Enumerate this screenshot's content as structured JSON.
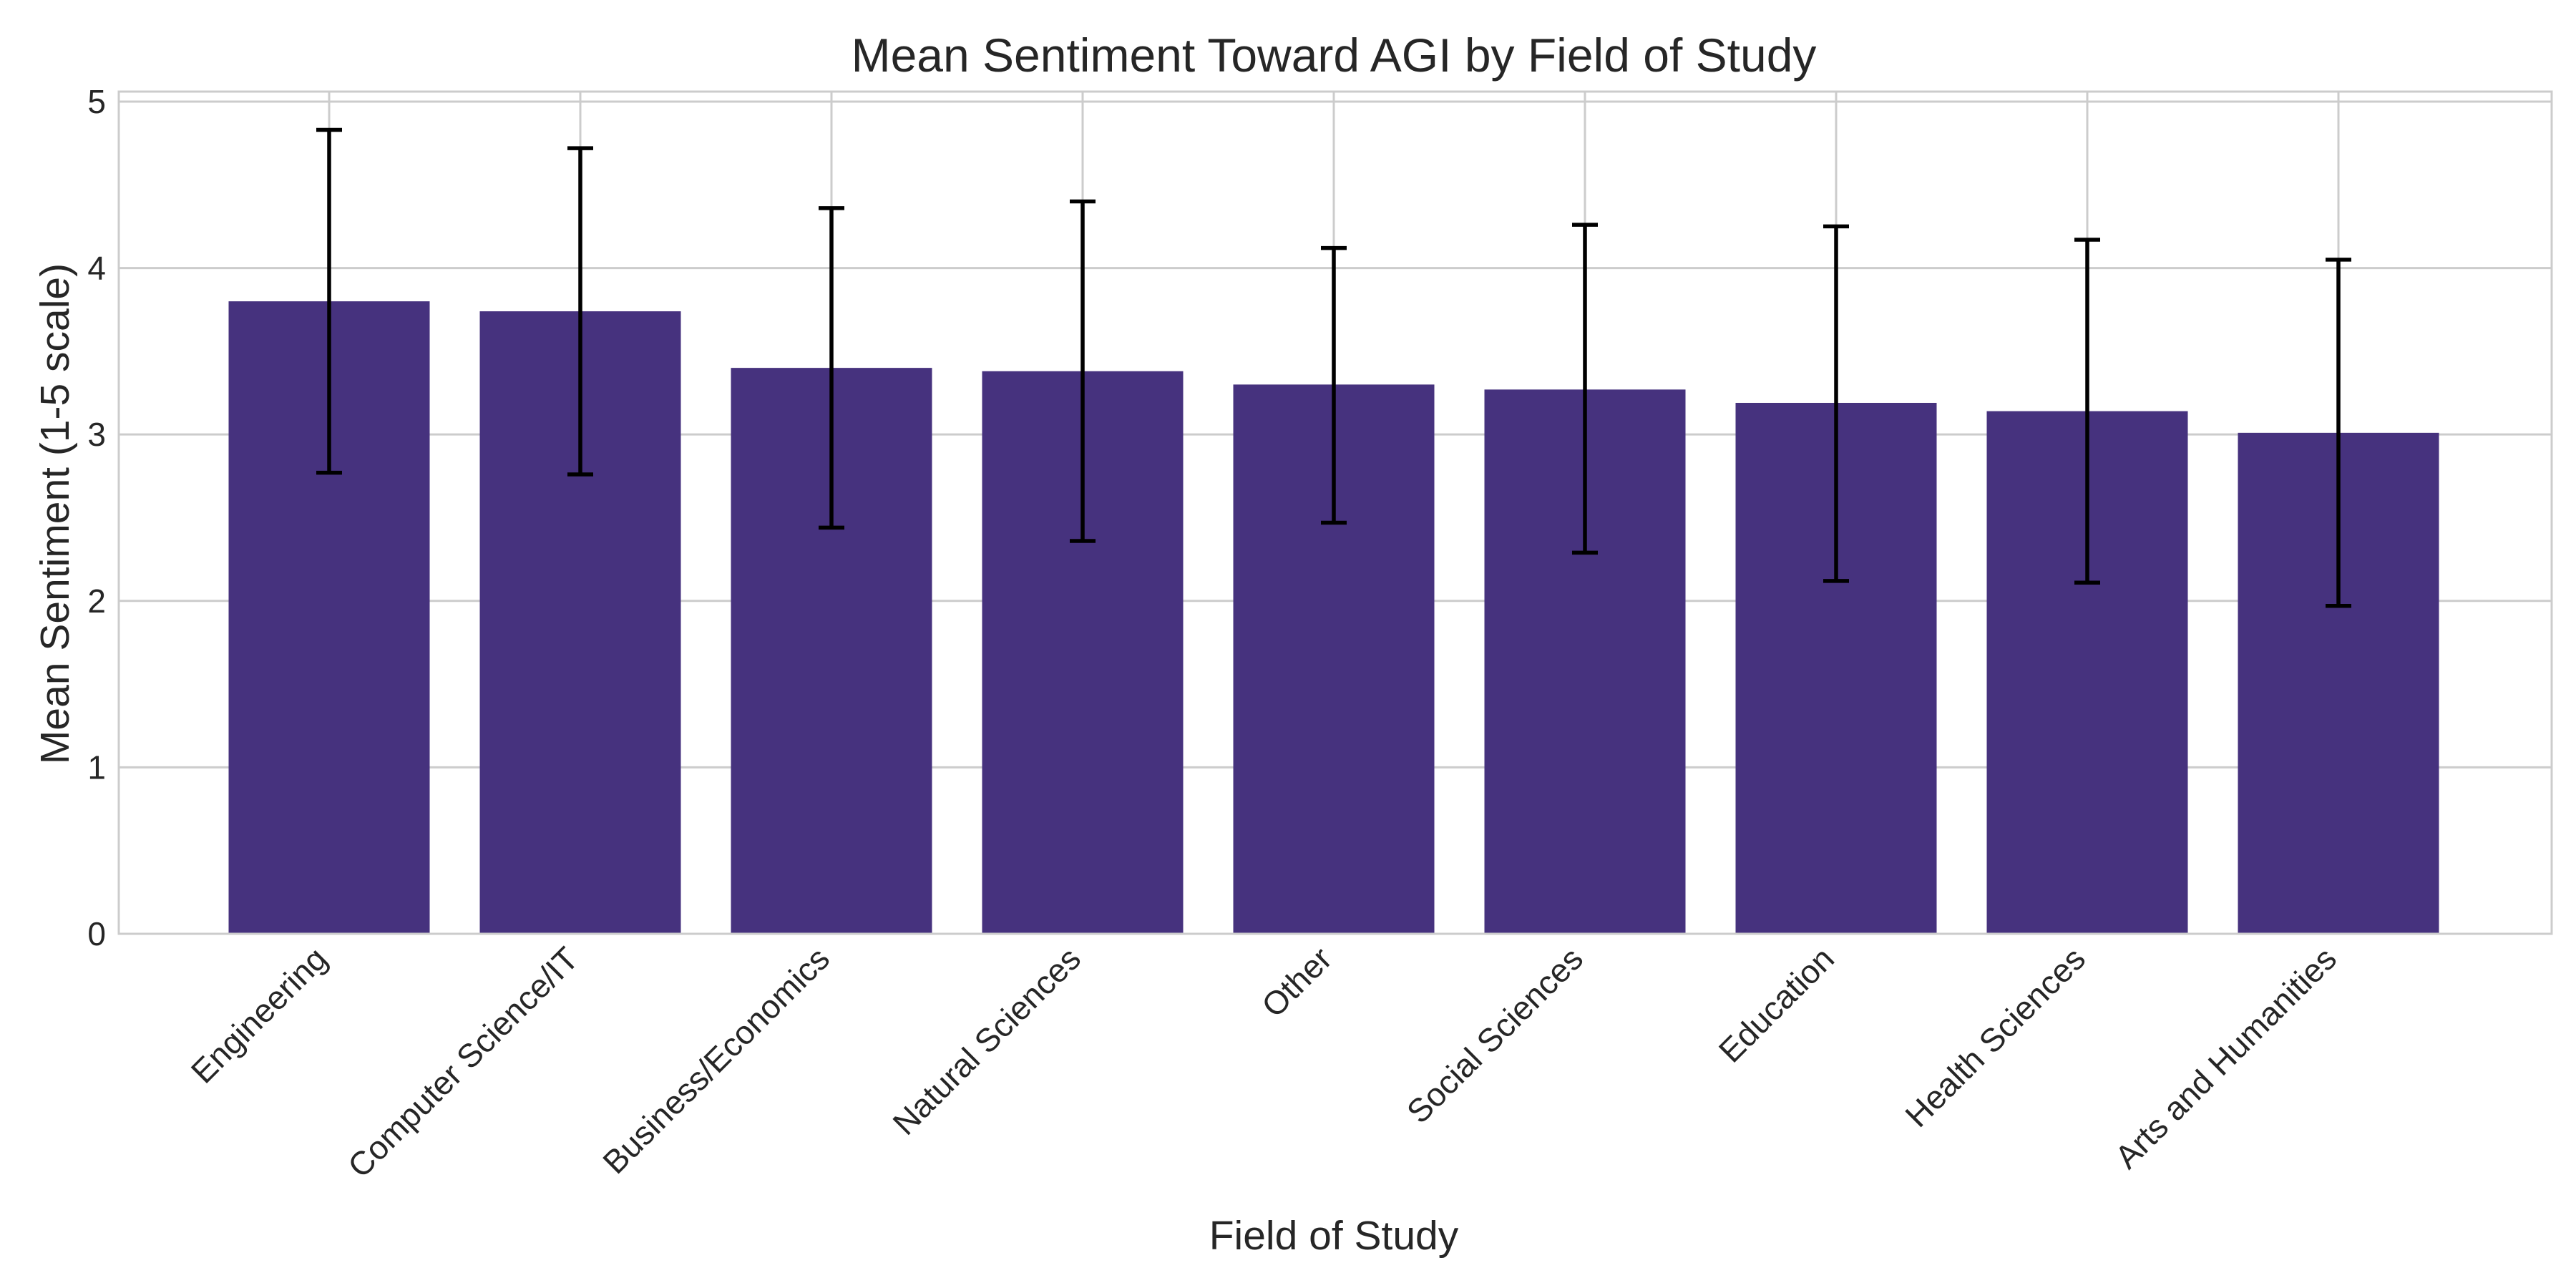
{
  "chart_data": {
    "type": "bar",
    "title": "Mean Sentiment Toward AGI by Field of Study",
    "xlabel": "Field of Study",
    "ylabel": "Mean Sentiment (1-5 scale)",
    "ylim": [
      0,
      5.06
    ],
    "yticks": [
      "0",
      "1",
      "2",
      "3",
      "4",
      "5"
    ],
    "grid": true,
    "bar_color": "#46327e",
    "error_color": "#000000",
    "categories": [
      "Engineering",
      "Computer Science/IT",
      "Business/Economics",
      "Natural Sciences",
      "Other",
      "Social Sciences",
      "Education",
      "Health Sciences",
      "Arts and Humanities"
    ],
    "values": [
      3.8,
      3.74,
      3.4,
      3.38,
      3.3,
      3.27,
      3.19,
      3.14,
      3.01
    ],
    "error_low": [
      2.77,
      2.76,
      2.44,
      2.36,
      2.47,
      2.29,
      2.12,
      2.11,
      1.97
    ],
    "error_high": [
      4.83,
      4.72,
      4.36,
      4.4,
      4.12,
      4.26,
      4.25,
      4.17,
      4.05
    ]
  }
}
